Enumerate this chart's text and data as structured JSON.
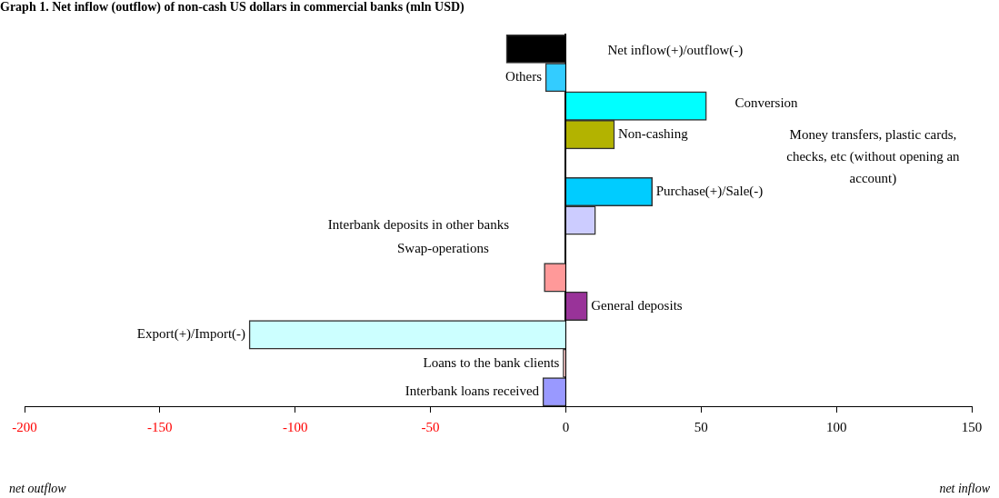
{
  "chart_data": {
    "type": "bar",
    "orientation": "horizontal",
    "title": "Graph 1. Net inflow (outflow) of non-cash US dollars in commercial banks (mln USD)",
    "categories": [
      "Net inflow(+)/outflow(-)",
      "Others",
      "Conversion",
      "Non-cashing",
      "Money transfers, plastic cards, checks, etc (without opening an account)",
      "Purchase(+)/Sale(-)",
      "Interbank deposits in other banks",
      "Swap-operations",
      null,
      "General deposits",
      "Export(+)/Import(-)",
      "Loans to the bank clients",
      "Interbank loans received"
    ],
    "values": [
      -22,
      -7.5,
      52,
      18,
      0,
      32,
      11,
      0,
      -8,
      8,
      -117,
      -1,
      -8.5
    ],
    "colors": [
      "#000000",
      "#33ccff",
      "#00ffff",
      "#b3b300",
      "#00ccff",
      "#00ccff",
      "#ccccff",
      "#cccccc",
      "#ff9999",
      "#993399",
      "#ccffff",
      "#ffcccc",
      "#9999ff"
    ],
    "xlim": [
      -200,
      150
    ],
    "xticks": [
      -200,
      -150,
      -100,
      -50,
      0,
      50,
      100,
      150
    ],
    "tick_labels": "x",
    "grid": false,
    "legend": false,
    "annotations": [
      "net outflow",
      "net inflow"
    ]
  }
}
